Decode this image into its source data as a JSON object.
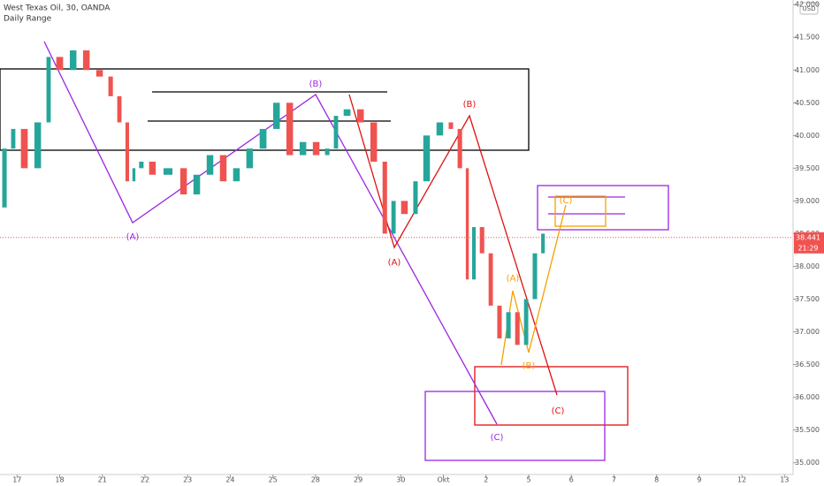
{
  "chart_data": {
    "type": "line",
    "title": "West Texas Oil, 30, OANDA",
    "subtitle": "Daily Range",
    "currency": "USD",
    "last_price": 38.441,
    "last_price_label": "38.441",
    "countdown": "21:29",
    "up_color": "#26a69a",
    "down_color": "#ef5350",
    "x": [
      -0.4,
      -0.19,
      0.01,
      0.33,
      0.64,
      0.84,
      1.16,
      1.47,
      1.78,
      2.09,
      2.3,
      2.5,
      2.67,
      2.81,
      3.02,
      3.33,
      3.75,
      4.06,
      4.37,
      4.68,
      4.99,
      5.3,
      5.61,
      5.93,
      6.24,
      6.55,
      6.86,
      7.17,
      7.38,
      7.58,
      7.9,
      8.21,
      8.52,
      8.73,
      8.93,
      9.24,
      9.45,
      9.76,
      10.07,
      10.28,
      10.49,
      10.63,
      10.8,
      11.01,
      11.21,
      11.42,
      11.63,
      11.84,
      12.04,
      12.25,
      12.42
    ],
    "series": [
      {
        "name": "West Texas Oil",
        "values": [
          38.9,
          39.8,
          40.1,
          39.5,
          40.2,
          41.2,
          41.0,
          41.3,
          41.0,
          40.9,
          40.6,
          40.2,
          39.3,
          39.5,
          39.6,
          39.4,
          39.5,
          39.1,
          39.4,
          39.7,
          39.3,
          39.5,
          39.8,
          40.1,
          40.5,
          39.7,
          39.9,
          39.7,
          39.8,
          40.3,
          40.4,
          40.2,
          39.6,
          38.5,
          39.0,
          38.8,
          39.3,
          40.0,
          40.2,
          40.1,
          39.5,
          37.8,
          38.6,
          38.2,
          37.4,
          36.9,
          37.3,
          36.8,
          37.5,
          38.2,
          38.5
        ]
      }
    ],
    "xlim": [
      -0.4,
      18.2
    ],
    "xticks": [
      {
        "value": 0,
        "label": "17"
      },
      {
        "value": 1,
        "label": "18"
      },
      {
        "value": 2,
        "label": "21"
      },
      {
        "value": 3,
        "label": "22"
      },
      {
        "value": 4,
        "label": "23"
      },
      {
        "value": 5,
        "label": "24"
      },
      {
        "value": 6,
        "label": "25"
      },
      {
        "value": 7,
        "label": "28"
      },
      {
        "value": 8,
        "label": "29"
      },
      {
        "value": 9,
        "label": "30"
      },
      {
        "value": 10,
        "label": "Okt"
      },
      {
        "value": 11,
        "label": "2"
      },
      {
        "value": 12,
        "label": "5"
      },
      {
        "value": 13,
        "label": "6"
      },
      {
        "value": 14,
        "label": "7"
      },
      {
        "value": 15,
        "label": "8"
      },
      {
        "value": 16,
        "label": "9"
      },
      {
        "value": 17,
        "label": "12"
      },
      {
        "value": 18,
        "label": "13"
      }
    ],
    "ylim": [
      34.82,
      42.07
    ],
    "yticks": [
      {
        "value": 42,
        "label": "42.000"
      },
      {
        "value": 41.5,
        "label": "41.500"
      },
      {
        "value": 41,
        "label": "41.000"
      },
      {
        "value": 40.5,
        "label": "40.500"
      },
      {
        "value": 40,
        "label": "40.000"
      },
      {
        "value": 39.5,
        "label": "39.500"
      },
      {
        "value": 39,
        "label": "39.000"
      },
      {
        "value": 38.5,
        "label": "38.500"
      },
      {
        "value": 38,
        "label": "38.000"
      },
      {
        "value": 37.5,
        "label": "37.500"
      },
      {
        "value": 37,
        "label": "37.000"
      },
      {
        "value": 36.5,
        "label": "36.500"
      },
      {
        "value": 36,
        "label": "36.000"
      },
      {
        "value": 35.5,
        "label": "35.500"
      },
      {
        "value": 35,
        "label": "35.000"
      }
    ],
    "waves": [
      {
        "color": "#9c27e0",
        "labels": [
          "(A)",
          "(B)",
          "(C)"
        ]
      },
      {
        "color": "#e01010",
        "labels": [
          "(A)",
          "(B)",
          "(C)"
        ]
      },
      {
        "color": "#f5a000",
        "labels": [
          "(A)",
          "(B)",
          "(C)"
        ]
      }
    ]
  }
}
